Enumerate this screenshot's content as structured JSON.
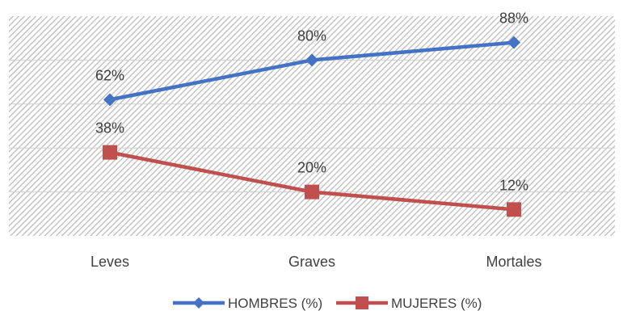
{
  "chart_data": {
    "type": "line",
    "categories": [
      "Leves",
      "Graves",
      "Mortales"
    ],
    "series": [
      {
        "name": "HOMBRES (%)",
        "values": [
          62,
          80,
          88
        ],
        "labels": [
          "62%",
          "80%",
          "88%"
        ],
        "color": "#4472C4",
        "marker": "diamond"
      },
      {
        "name": "MUJERES (%)",
        "values": [
          38,
          20,
          12
        ],
        "labels": [
          "38%",
          "20%",
          "12%"
        ],
        "color": "#C0504D",
        "marker": "square"
      }
    ],
    "ylim": [
      0,
      100
    ],
    "y_gridlines": [
      20,
      40,
      60,
      80
    ],
    "grid": true,
    "plot_background": "diagonal-hatch",
    "legend_position": "bottom",
    "title": "",
    "xlabel": "",
    "ylabel": ""
  }
}
